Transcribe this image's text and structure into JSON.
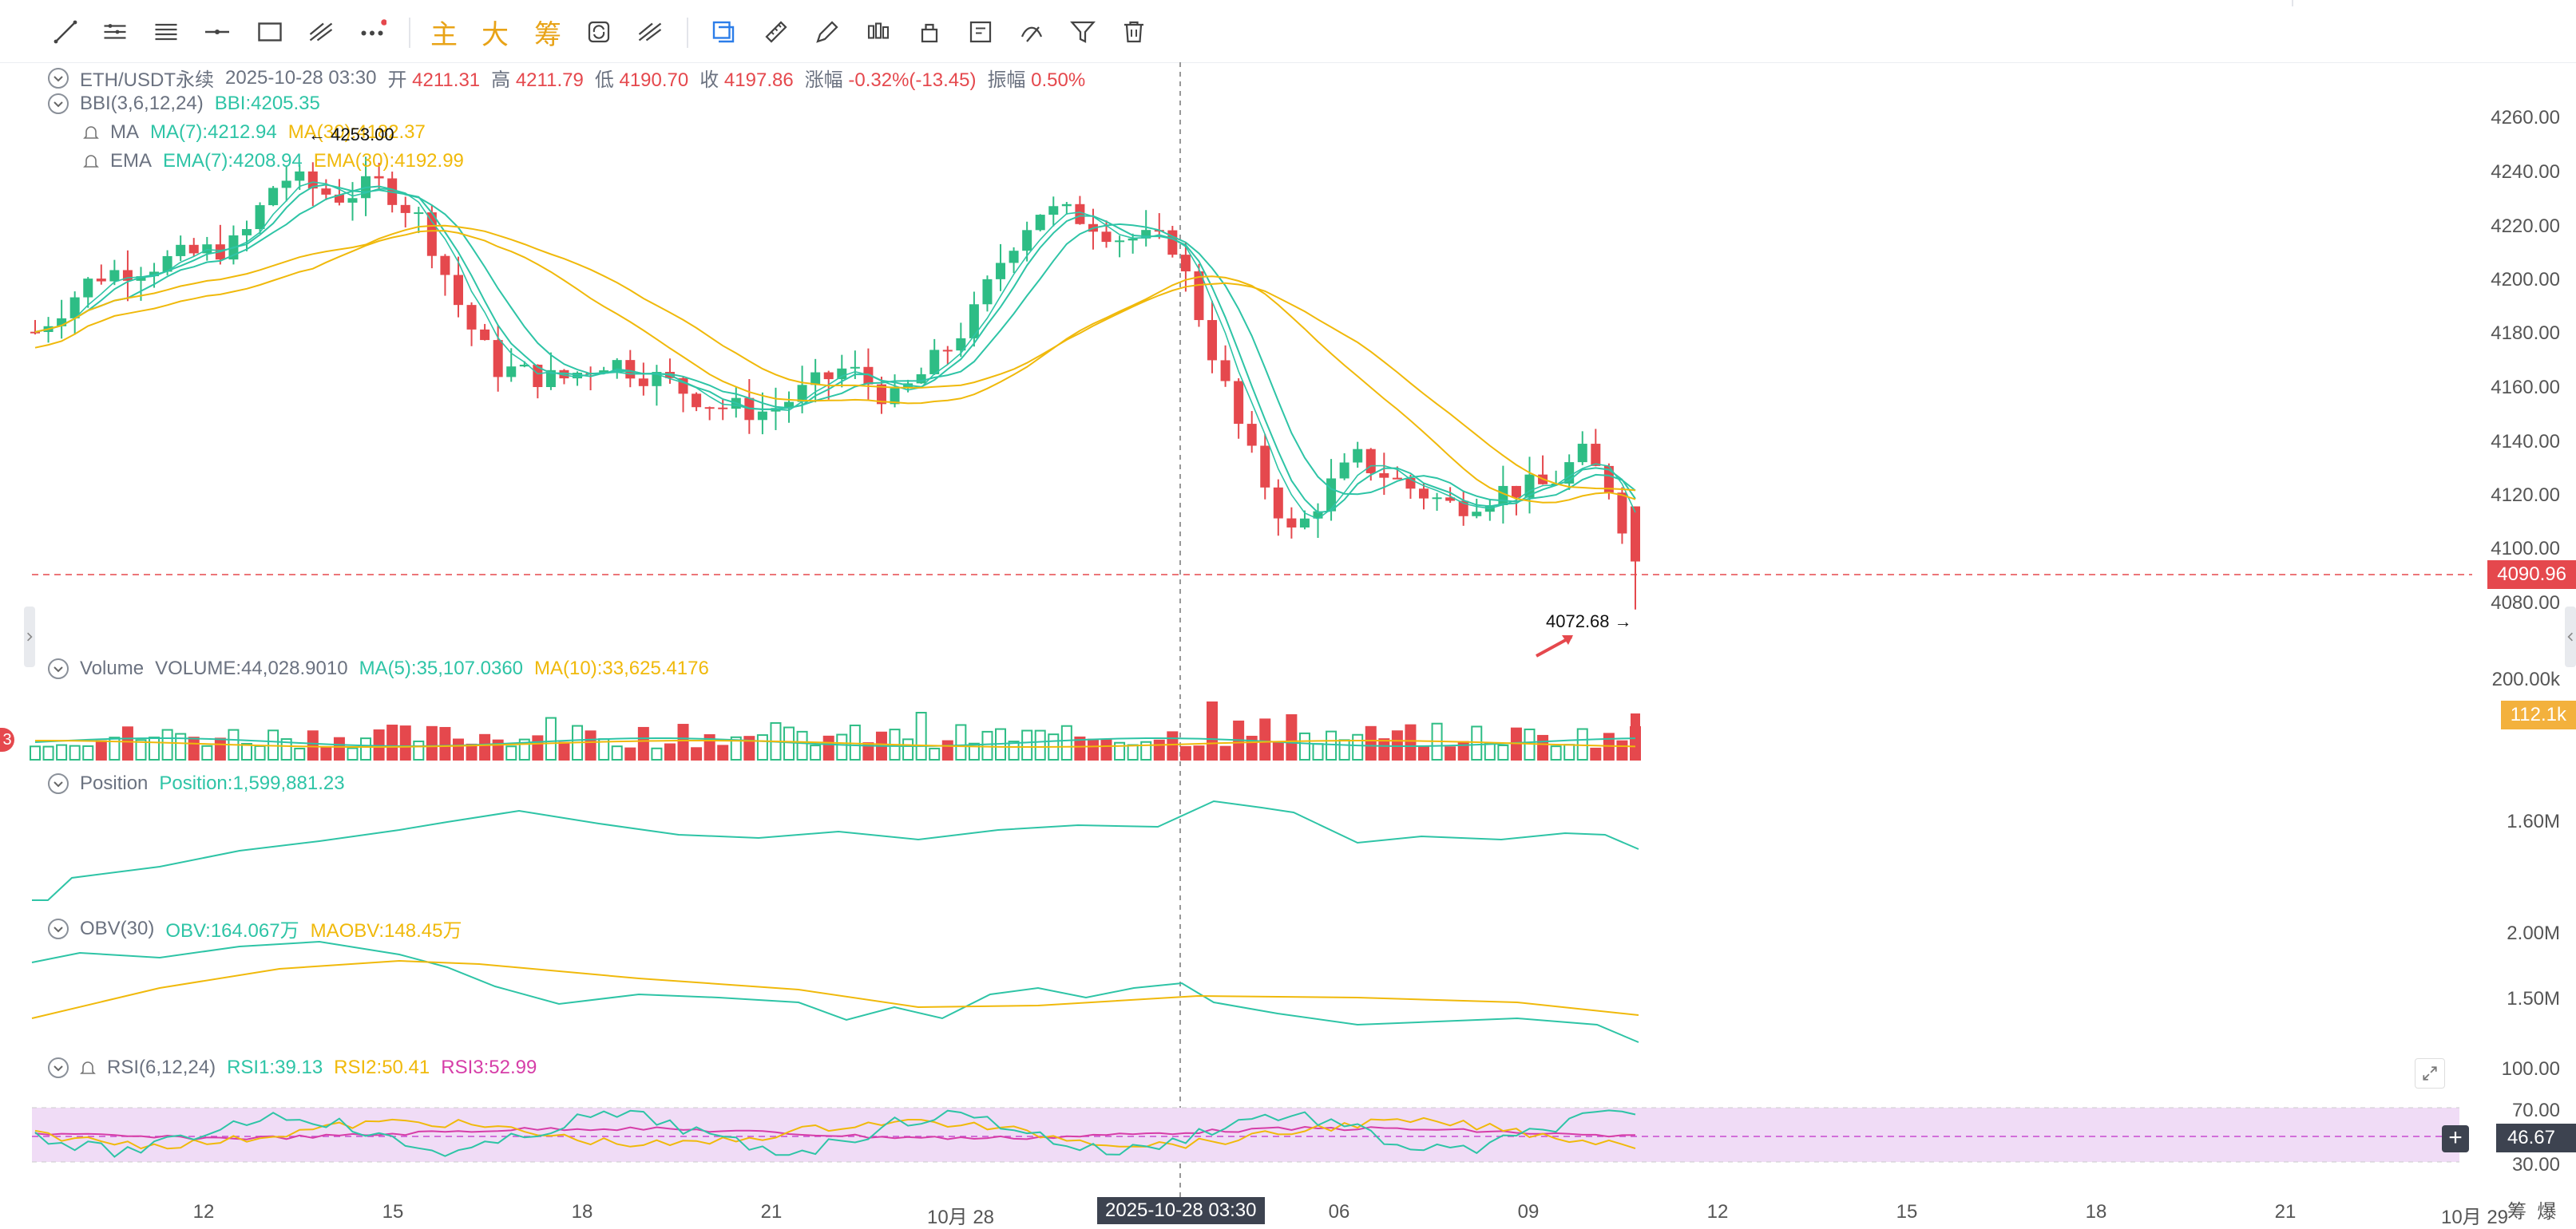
{
  "toolbar": {
    "tools": [
      {
        "name": "trend-line-icon"
      },
      {
        "name": "parallel-lines-icon"
      },
      {
        "name": "channel-lines-icon"
      },
      {
        "name": "horizontal-line-icon"
      },
      {
        "name": "rectangle-icon"
      },
      {
        "name": "fib-icon"
      },
      {
        "name": "more-tools-icon"
      }
    ],
    "text_buttons": [
      "主",
      "大",
      "筹"
    ],
    "right_tools": [
      {
        "name": "magnet-icon"
      },
      {
        "name": "ruler-icon"
      },
      {
        "name": "brush-icon"
      },
      {
        "name": "candle-pattern-icon"
      },
      {
        "name": "lock-icon"
      },
      {
        "name": "notes-icon"
      },
      {
        "name": "hide-drawings-icon"
      },
      {
        "name": "filter-icon"
      },
      {
        "name": "delete-icon"
      }
    ]
  },
  "main_legend": {
    "symbol": "ETH/USDT永续",
    "datetime": "2025-10-28 03:30",
    "open_label": "开",
    "open": "4211.31",
    "high_label": "高",
    "high": "4211.79",
    "low_label": "低",
    "low": "4190.70",
    "close_label": "收",
    "close": "4197.86",
    "change_label": "涨幅",
    "change": "-0.32%(-13.45)",
    "amp_label": "振幅",
    "amp": "0.50%"
  },
  "bbi_legend": {
    "name": "BBI(3,6,12,24)",
    "value": "BBI:4205.35"
  },
  "ma_legend": {
    "name": "MA",
    "ma7": "MA(7):4212.94",
    "ma30": "MA(30):4182.37"
  },
  "ema_legend": {
    "name": "EMA",
    "ema7": "EMA(7):4208.94",
    "ema30": "EMA(30):4192.99"
  },
  "high_marker": "4253.00",
  "low_marker": "4072.68",
  "price_axis": [
    "4260.00",
    "4240.00",
    "4220.00",
    "4200.00",
    "4180.00",
    "4160.00",
    "4140.00",
    "4120.00",
    "4100.00",
    "4080.00"
  ],
  "current_price": "4090.96",
  "volume_legend": {
    "name": "Volume",
    "value": "VOLUME:44,028.9010",
    "ma5": "MA(5):35,107.0360",
    "ma10": "MA(10):33,625.4176"
  },
  "volume_axis": "200.00k",
  "volume_tag": "112.1k",
  "position_legend": {
    "name": "Position",
    "value": "Position:1,599,881.23"
  },
  "position_axis": "1.60M",
  "obv_legend": {
    "name": "OBV(30)",
    "value": "OBV:164.067万",
    "maobv": "MAOBV:148.45万"
  },
  "obv_axis": [
    "2.00M",
    "1.50M"
  ],
  "rsi_legend": {
    "name": "RSI(6,12,24)",
    "rsi1": "RSI1:39.13",
    "rsi2": "RSI2:50.41",
    "rsi3": "RSI3:52.99"
  },
  "rsi_axis": [
    "100.00",
    "70.00",
    "30.00"
  ],
  "rsi_tag": "46.67",
  "time_axis": [
    "12",
    "15",
    "18",
    "21",
    "10月 28",
    "06",
    "09",
    "12",
    "15",
    "18",
    "21",
    "10月 29"
  ],
  "crosshair_time": "2025-10-28 03:30",
  "right_edge": [
    "筹",
    "爆"
  ],
  "badge": "3",
  "colors": {
    "up": "#2ebd85",
    "down": "#e5484d",
    "ma_teal": "#2ec4a6",
    "ma_gold": "#f0b90b",
    "rsi3": "#d63ea8"
  },
  "chart_data": {
    "type": "candlestick",
    "x_range": [
      "10-11",
      "10-29"
    ],
    "y_range": [
      4070,
      4265
    ],
    "last_close": 4090.96,
    "session_high": 4253.0,
    "session_low": 4072.68
  }
}
